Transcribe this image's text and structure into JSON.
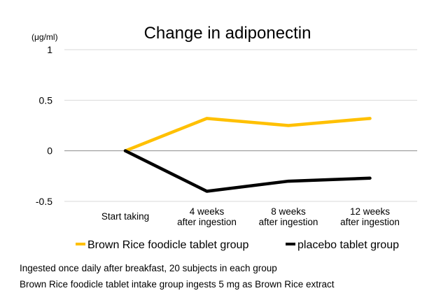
{
  "chart_data": {
    "type": "line",
    "title": "Change in adiponectin",
    "unit_label": "(μg/ml)",
    "categories": [
      "Start taking",
      "4 weeks\nafter ingestion",
      "8 weeks\nafter ingestion",
      "12 weeks\nafter ingestion"
    ],
    "y_ticks": [
      "1",
      "0.5",
      "0",
      "-0.5"
    ],
    "ylim": [
      -0.5,
      1
    ],
    "grid": "horizontal",
    "legend_position": "bottom",
    "series": [
      {
        "name": "Brown Rice foodicle tablet group",
        "color": "#FFC000",
        "values": [
          0,
          0.32,
          0.25,
          0.32
        ]
      },
      {
        "name": "placebo tablet group",
        "color": "#000000",
        "values": [
          0,
          -0.4,
          -0.3,
          -0.27
        ]
      }
    ]
  },
  "footnotes": [
    "Ingested once daily after breakfast, 20 subjects in each group",
    "Brown Rice foodicle tablet intake group ingests 5 mg as Brown Rice extract"
  ]
}
